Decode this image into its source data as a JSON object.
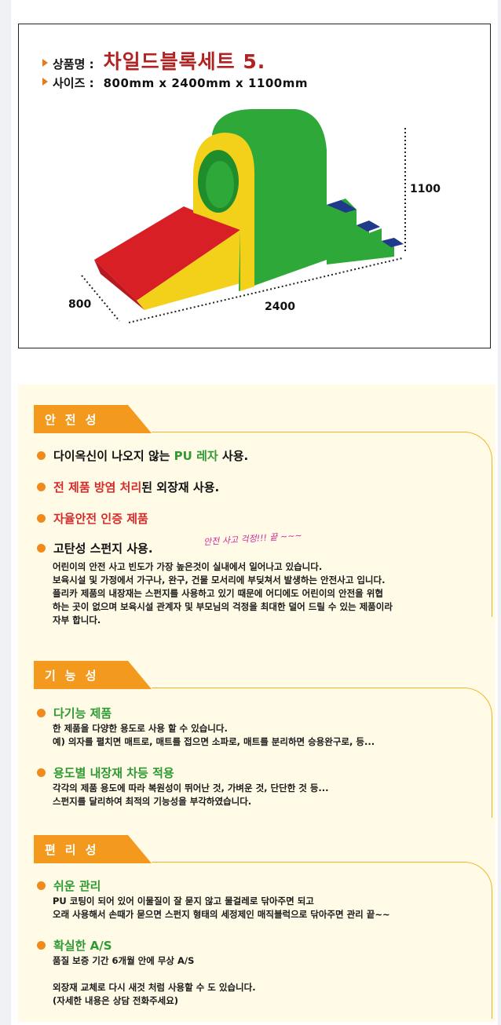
{
  "product": {
    "name_label": "상품명 :",
    "name_value": "차일드블록세트 5.",
    "size_label": "사이즈 :",
    "size_value": "800mm x 2400mm x 1100mm",
    "dim_height": "1100",
    "dim_depth": "800",
    "dim_width": "2400"
  },
  "safety": {
    "title": "안전성",
    "b1_pre": "다이옥신이 나오지 않는 ",
    "b1_hl": "PU 레자",
    "b1_post": " 사용.",
    "b2_hl": "전 제품 방염 처리",
    "b2_post": "된 외장재 사용.",
    "b3": "자율안전 인증 제품",
    "b4": "고탄성 스펀지 사용.",
    "handwritten": "안전 사고 걱정!!! 끝 ~~~",
    "desc": [
      "어린이의 안전 사고 빈도가 가장 높은것이 실내에서 일어나고 있습니다.",
      "보육시설 및 가정에서 가구나, 완구, 건물 모서리에 부딪쳐서 발생하는 안전사고 입니다.",
      "플리카 제품의 내장재는 스펀지를 사용하고 있기 때문에 어디에도 어린이의 안전을 위협",
      "하는 곳이 없으며 보육시설 관계자 및 부모님의 걱정을 최대한 덜어 드릴 수 있는 제품이라",
      "자부 합니다."
    ]
  },
  "function": {
    "title": "기능성",
    "b1": "다기능 제품",
    "b1_desc": [
      "한 제품을 다양한 용도로 사용 할 수 있습니다.",
      "예) 의자를 펼치면 매트로, 매트를 접으면 소파로, 매트를 분리하면 승용완구로, 등..."
    ],
    "b2": "용도별 내장재 차등 적용",
    "b2_desc": [
      "각각의 제품 용도에 따라 복원성이 뛰어난 것, 가벼운 것, 단단한 것 등...",
      "스펀지를 달리하여 최적의 기능성을 부각하였습니다."
    ]
  },
  "convenience": {
    "title": "편리성",
    "b1": "쉬운 관리",
    "b1_desc": [
      "PU 코팅이 되어 있어 이물질이 잘 묻지 않고 물걸레로 닦아주면 되고",
      "오래 사용해서 손때가 묻으면 스펀지 형태의 세정제인 매직블럭으로 닦아주면 관리 끝~~"
    ],
    "b2": "확실한 A/S",
    "b2_desc": [
      "품질 보증 기간 6개월 안에 무상 A/S",
      "",
      "외장재 교체로 다시 새것 처럼 사용할 수 도 있습니다.",
      "(자세한 내용은 상담 전화주세요)"
    ]
  },
  "colors": {
    "tab_orange": "#f39a1e",
    "bullet_orange": "#f08a1c",
    "title_red": "#b22222",
    "highlight_green": "#2f9a33",
    "highlight_red": "#d52b2b",
    "panel_bg": "#fffbe6"
  }
}
